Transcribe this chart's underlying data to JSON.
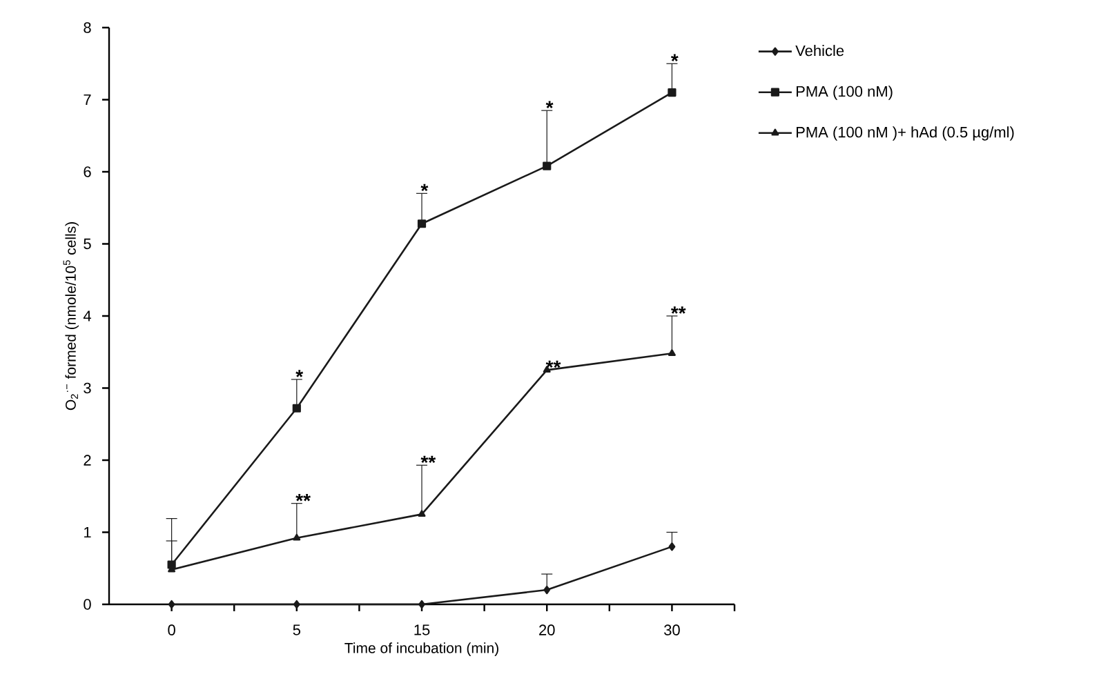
{
  "chart_data": {
    "type": "line",
    "xlabel": "Time of incubation (min)",
    "ylabel": "O$_{2}$$^{·−}$ formed (nmole/10$^{5}$ cells)",
    "categories": [
      "0",
      "5",
      "15",
      "20",
      "30"
    ],
    "series": [
      {
        "name": "Vehicle",
        "color": "#1a1a1a",
        "marker": "diamond",
        "values": [
          0,
          0,
          0,
          0.2,
          0.8
        ],
        "errors": [
          null,
          null,
          null,
          [
            0.2,
            0.42
          ],
          [
            0.8,
            1.0
          ]
        ]
      },
      {
        "name": "PMA (100 nM)",
        "color": "#1a1a1a",
        "marker": "square",
        "values": [
          0.55,
          2.72,
          5.28,
          6.08,
          7.1
        ],
        "errors": [
          [
            0.55,
            1.19
          ],
          [
            2.72,
            3.12
          ],
          [
            5.28,
            5.7
          ],
          [
            6.08,
            6.85
          ],
          [
            7.1,
            7.5
          ]
        ]
      },
      {
        "name": "PMA (100 nM )+ hAd (0.5 µg/ml)",
        "color": "#1a1a1a",
        "marker": "triangle",
        "values": [
          0.48,
          0.92,
          1.25,
          3.25,
          3.48
        ],
        "errors": [
          [
            0.48,
            0.88
          ],
          [
            0.92,
            1.4
          ],
          [
            1.25,
            1.93
          ],
          null,
          [
            3.48,
            4.0
          ]
        ]
      }
    ],
    "ylim": [
      0,
      8
    ],
    "yticks": [
      0,
      1,
      2,
      3,
      4,
      5,
      6,
      7,
      8
    ],
    "legend": "right",
    "grid": false,
    "annotations": [
      {
        "text": "*",
        "x": "5",
        "y": 3.12
      },
      {
        "text": "*",
        "x": "15",
        "y": 5.7
      },
      {
        "text": "*",
        "x": "20",
        "y": 6.85
      },
      {
        "text": "*",
        "x": "30",
        "y": 7.5
      },
      {
        "text": "**",
        "x": "5",
        "y": 1.4
      },
      {
        "text": "**",
        "x": "15",
        "y": 1.93
      },
      {
        "text": "**",
        "x": "20",
        "y": 3.25
      },
      {
        "text": "**",
        "x": "30",
        "y": 4.0
      }
    ]
  }
}
